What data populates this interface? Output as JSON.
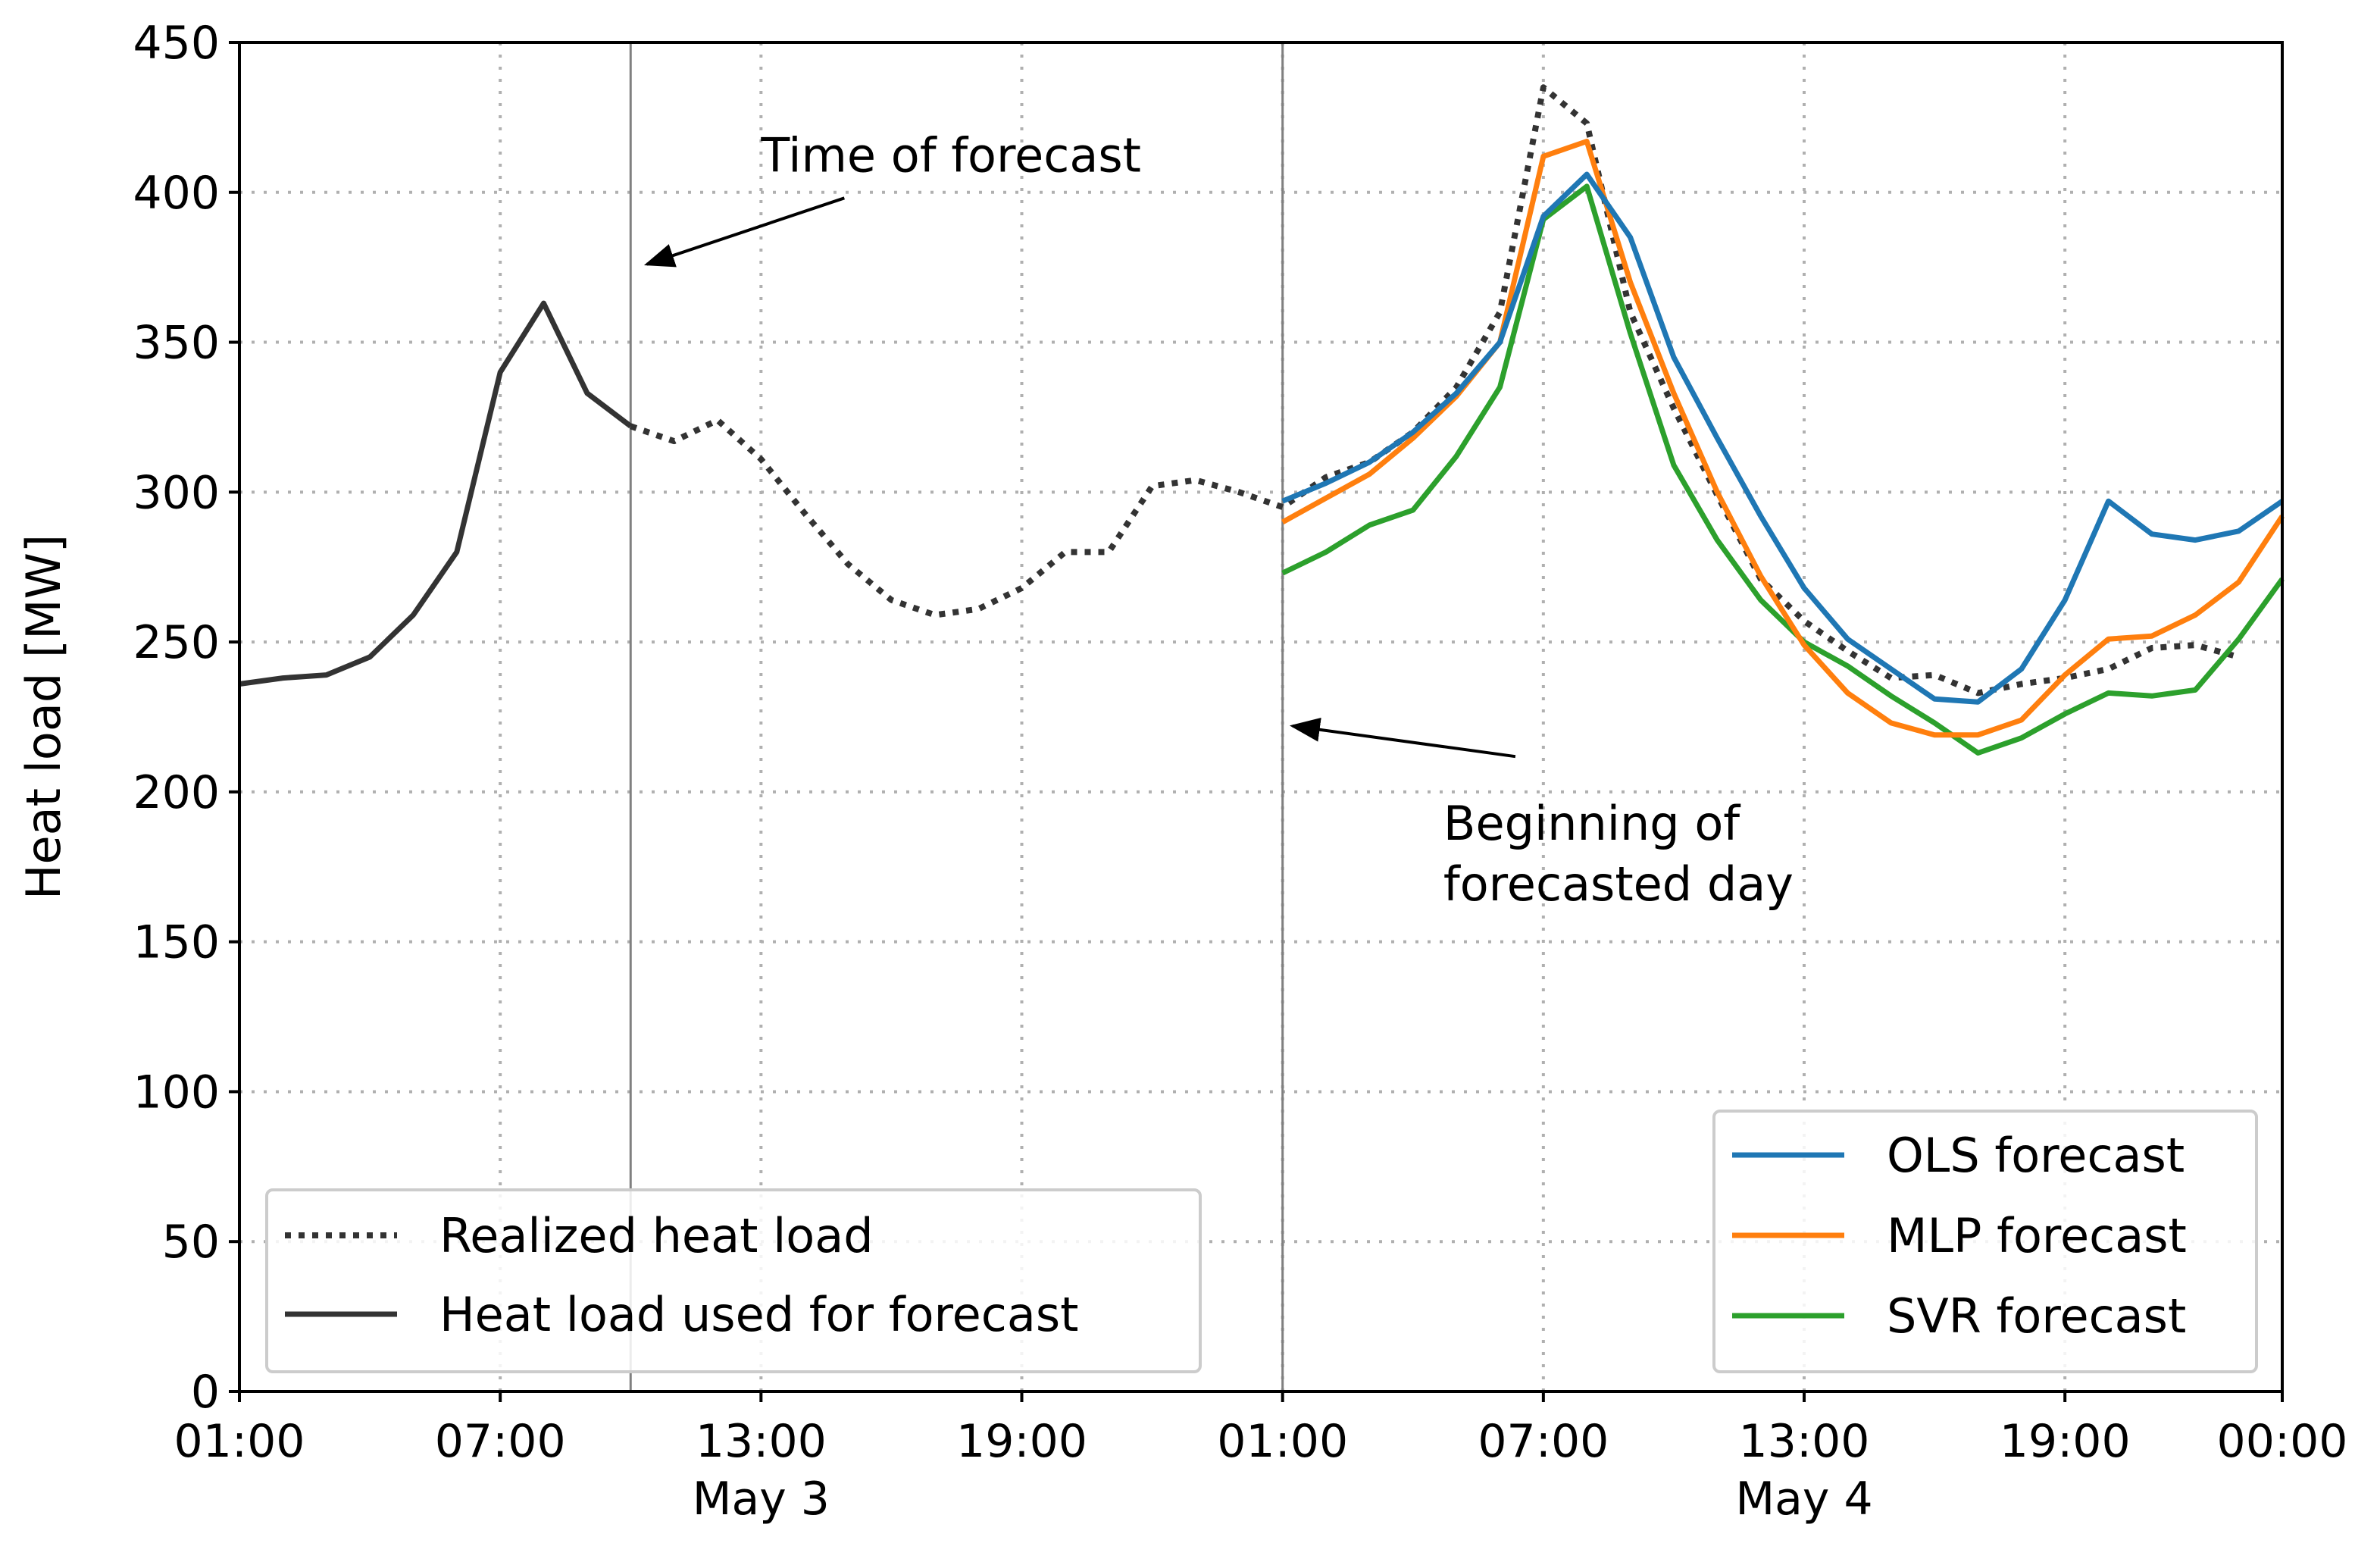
{
  "chart_data": {
    "type": "line",
    "ylabel": "Heat load [MW]",
    "xlabel": "",
    "ylim": [
      0,
      450
    ],
    "yticks": [
      0,
      50,
      100,
      150,
      200,
      250,
      300,
      350,
      400,
      450
    ],
    "xlim": [
      0,
      47
    ],
    "xticks": [
      {
        "x": 0,
        "label": "01:00"
      },
      {
        "x": 6,
        "label": "07:00"
      },
      {
        "x": 12,
        "label": "13:00"
      },
      {
        "x": 18,
        "label": "19:00"
      },
      {
        "x": 24,
        "label": "01:00"
      },
      {
        "x": 30,
        "label": "07:00"
      },
      {
        "x": 36,
        "label": "13:00"
      },
      {
        "x": 42,
        "label": "19:00"
      },
      {
        "x": 47,
        "label": "00:00"
      }
    ],
    "date_labels": [
      {
        "x": 12,
        "label": "May 3"
      },
      {
        "x": 36,
        "label": "May 4"
      }
    ],
    "grid": true,
    "vertical_lines": [
      9,
      24
    ],
    "series": [
      {
        "name": "Realized heat load",
        "color": "#333333",
        "style": "dotted",
        "x_start": 9,
        "values": [
          322,
          317,
          324,
          311,
          293,
          276,
          264,
          259,
          261,
          268,
          280,
          280,
          302,
          304,
          300,
          295,
          305,
          310,
          320,
          335,
          360,
          435,
          423,
          360,
          328,
          299,
          271,
          257,
          247,
          238,
          239,
          233,
          236,
          238,
          241,
          248,
          249,
          245
        ]
      },
      {
        "name": "Heat load used for forecast",
        "color": "#333333",
        "style": "solid",
        "x_start": 0,
        "values": [
          236,
          238,
          239,
          245,
          259,
          280,
          340,
          363,
          333,
          322
        ]
      },
      {
        "name": "OLS forecast",
        "color": "#1f77b4",
        "style": "solid",
        "x_start": 24,
        "values": [
          297,
          303,
          310,
          320,
          333,
          350,
          392,
          406,
          385,
          345,
          318,
          292,
          268,
          251,
          241,
          231,
          230,
          241,
          264,
          297,
          286,
          284,
          287,
          297
        ]
      },
      {
        "name": "MLP forecast",
        "color": "#ff7f0e",
        "style": "solid",
        "x_start": 24,
        "values": [
          290,
          298,
          306,
          318,
          332,
          350,
          412,
          417,
          370,
          333,
          300,
          272,
          249,
          233,
          223,
          219,
          219,
          224,
          239,
          251,
          252,
          259,
          270,
          292
        ]
      },
      {
        "name": "SVR forecast",
        "color": "#2ca02c",
        "style": "solid",
        "x_start": 24,
        "values": [
          273,
          280,
          289,
          294,
          312,
          335,
          391,
          402,
          353,
          309,
          284,
          264,
          250,
          242,
          232,
          223,
          213,
          218,
          226,
          233,
          232,
          234,
          251,
          271
        ]
      }
    ],
    "annotations": [
      {
        "text": "Time of forecast",
        "text_x": 12,
        "text_y": 412,
        "arrow_to_x": 9.2,
        "arrow_to_y": 376
      },
      {
        "text_lines": [
          "Beginning of",
          "forecasted day"
        ],
        "text_x": 27.7,
        "text_y": 184,
        "arrow_to_x": 24.3,
        "arrow_to_y": 222
      }
    ],
    "legends": [
      {
        "location": "lower-left",
        "entries": [
          "Realized heat load",
          "Heat load used for forecast"
        ]
      },
      {
        "location": "lower-right",
        "entries": [
          "OLS forecast",
          "MLP forecast",
          "SVR forecast"
        ]
      }
    ]
  }
}
